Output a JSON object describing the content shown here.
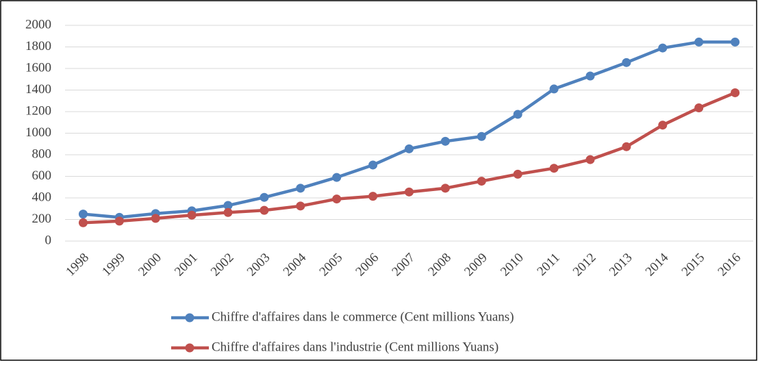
{
  "chart_data": {
    "type": "line",
    "categories": [
      "1998",
      "1999",
      "2000",
      "2001",
      "2002",
      "2003",
      "2004",
      "2005",
      "2006",
      "2007",
      "2008",
      "2009",
      "2010",
      "2011",
      "2012",
      "2013",
      "2014",
      "2015",
      "2016"
    ],
    "series": [
      {
        "name": "Chiffre d'affaires dans le commerce (Cent millions Yuans)",
        "color": "#4f81bd",
        "values": [
          250,
          220,
          255,
          280,
          330,
          405,
          490,
          590,
          705,
          855,
          925,
          970,
          1175,
          1410,
          1530,
          1655,
          1790,
          1845,
          1845
        ]
      },
      {
        "name": "Chiffre d'affaires dans l'industrie (Cent millions Yuans)",
        "color": "#c0504d",
        "values": [
          170,
          185,
          210,
          240,
          265,
          285,
          325,
          390,
          415,
          455,
          490,
          555,
          620,
          675,
          755,
          875,
          1075,
          1235,
          1375
        ]
      }
    ],
    "ylim": [
      0,
      2000
    ],
    "yticks": [
      0,
      200,
      400,
      600,
      800,
      1000,
      1200,
      1400,
      1600,
      1800,
      2000
    ],
    "grid": true
  }
}
